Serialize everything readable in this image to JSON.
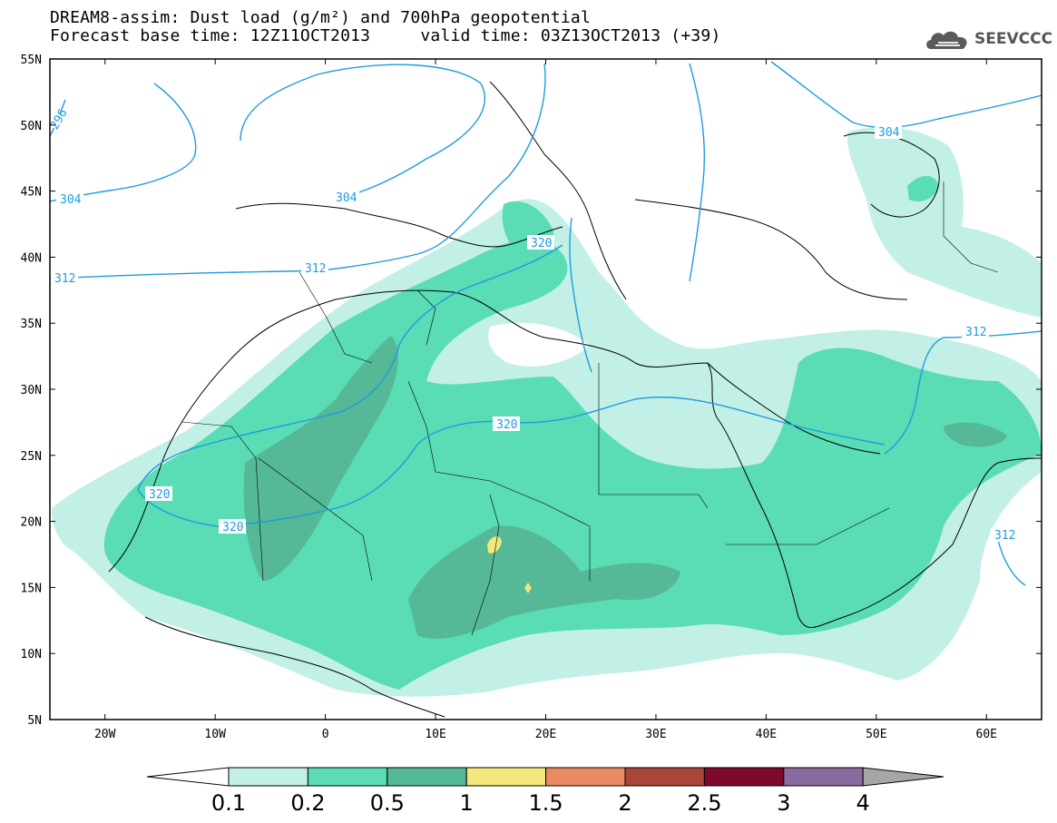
{
  "header": {
    "title": "DREAM8-assim: Dust load (g/m²) and 700hPa geopotential",
    "base_time": "Forecast base time: 12Z11OCT2013",
    "valid_time": "valid time: 03Z13OCT2013 (+39)"
  },
  "logo": {
    "text": "SEEVCCC",
    "icon": "cloud-icon"
  },
  "axes": {
    "x_ticks": [
      "20W",
      "10W",
      "0",
      "10E",
      "20E",
      "30E",
      "40E",
      "50E",
      "60E"
    ],
    "y_ticks": [
      "55N",
      "50N",
      "45N",
      "40N",
      "35N",
      "30N",
      "25N",
      "20N",
      "15N",
      "10N",
      "5N"
    ],
    "lon_range": [
      -25,
      65
    ],
    "lat_range": [
      5,
      55
    ]
  },
  "contours": {
    "color": "#1e9be0",
    "labels": [
      "296",
      "304",
      "304",
      "304",
      "312",
      "312",
      "312",
      "312",
      "320",
      "320",
      "320",
      "320"
    ]
  },
  "colorbar": {
    "labels": [
      "0.1",
      "0.2",
      "0.5",
      "1",
      "1.5",
      "2",
      "2.5",
      "3",
      "4"
    ],
    "colors": [
      "#c2efe6",
      "#5adcb4",
      "#55b896",
      "#f2e77a",
      "#e98b62",
      "#a8463a",
      "#7d0a2a",
      "#8a6b9f"
    ],
    "under_color": "#ffffff",
    "over_color": "#a6a6a6"
  }
}
